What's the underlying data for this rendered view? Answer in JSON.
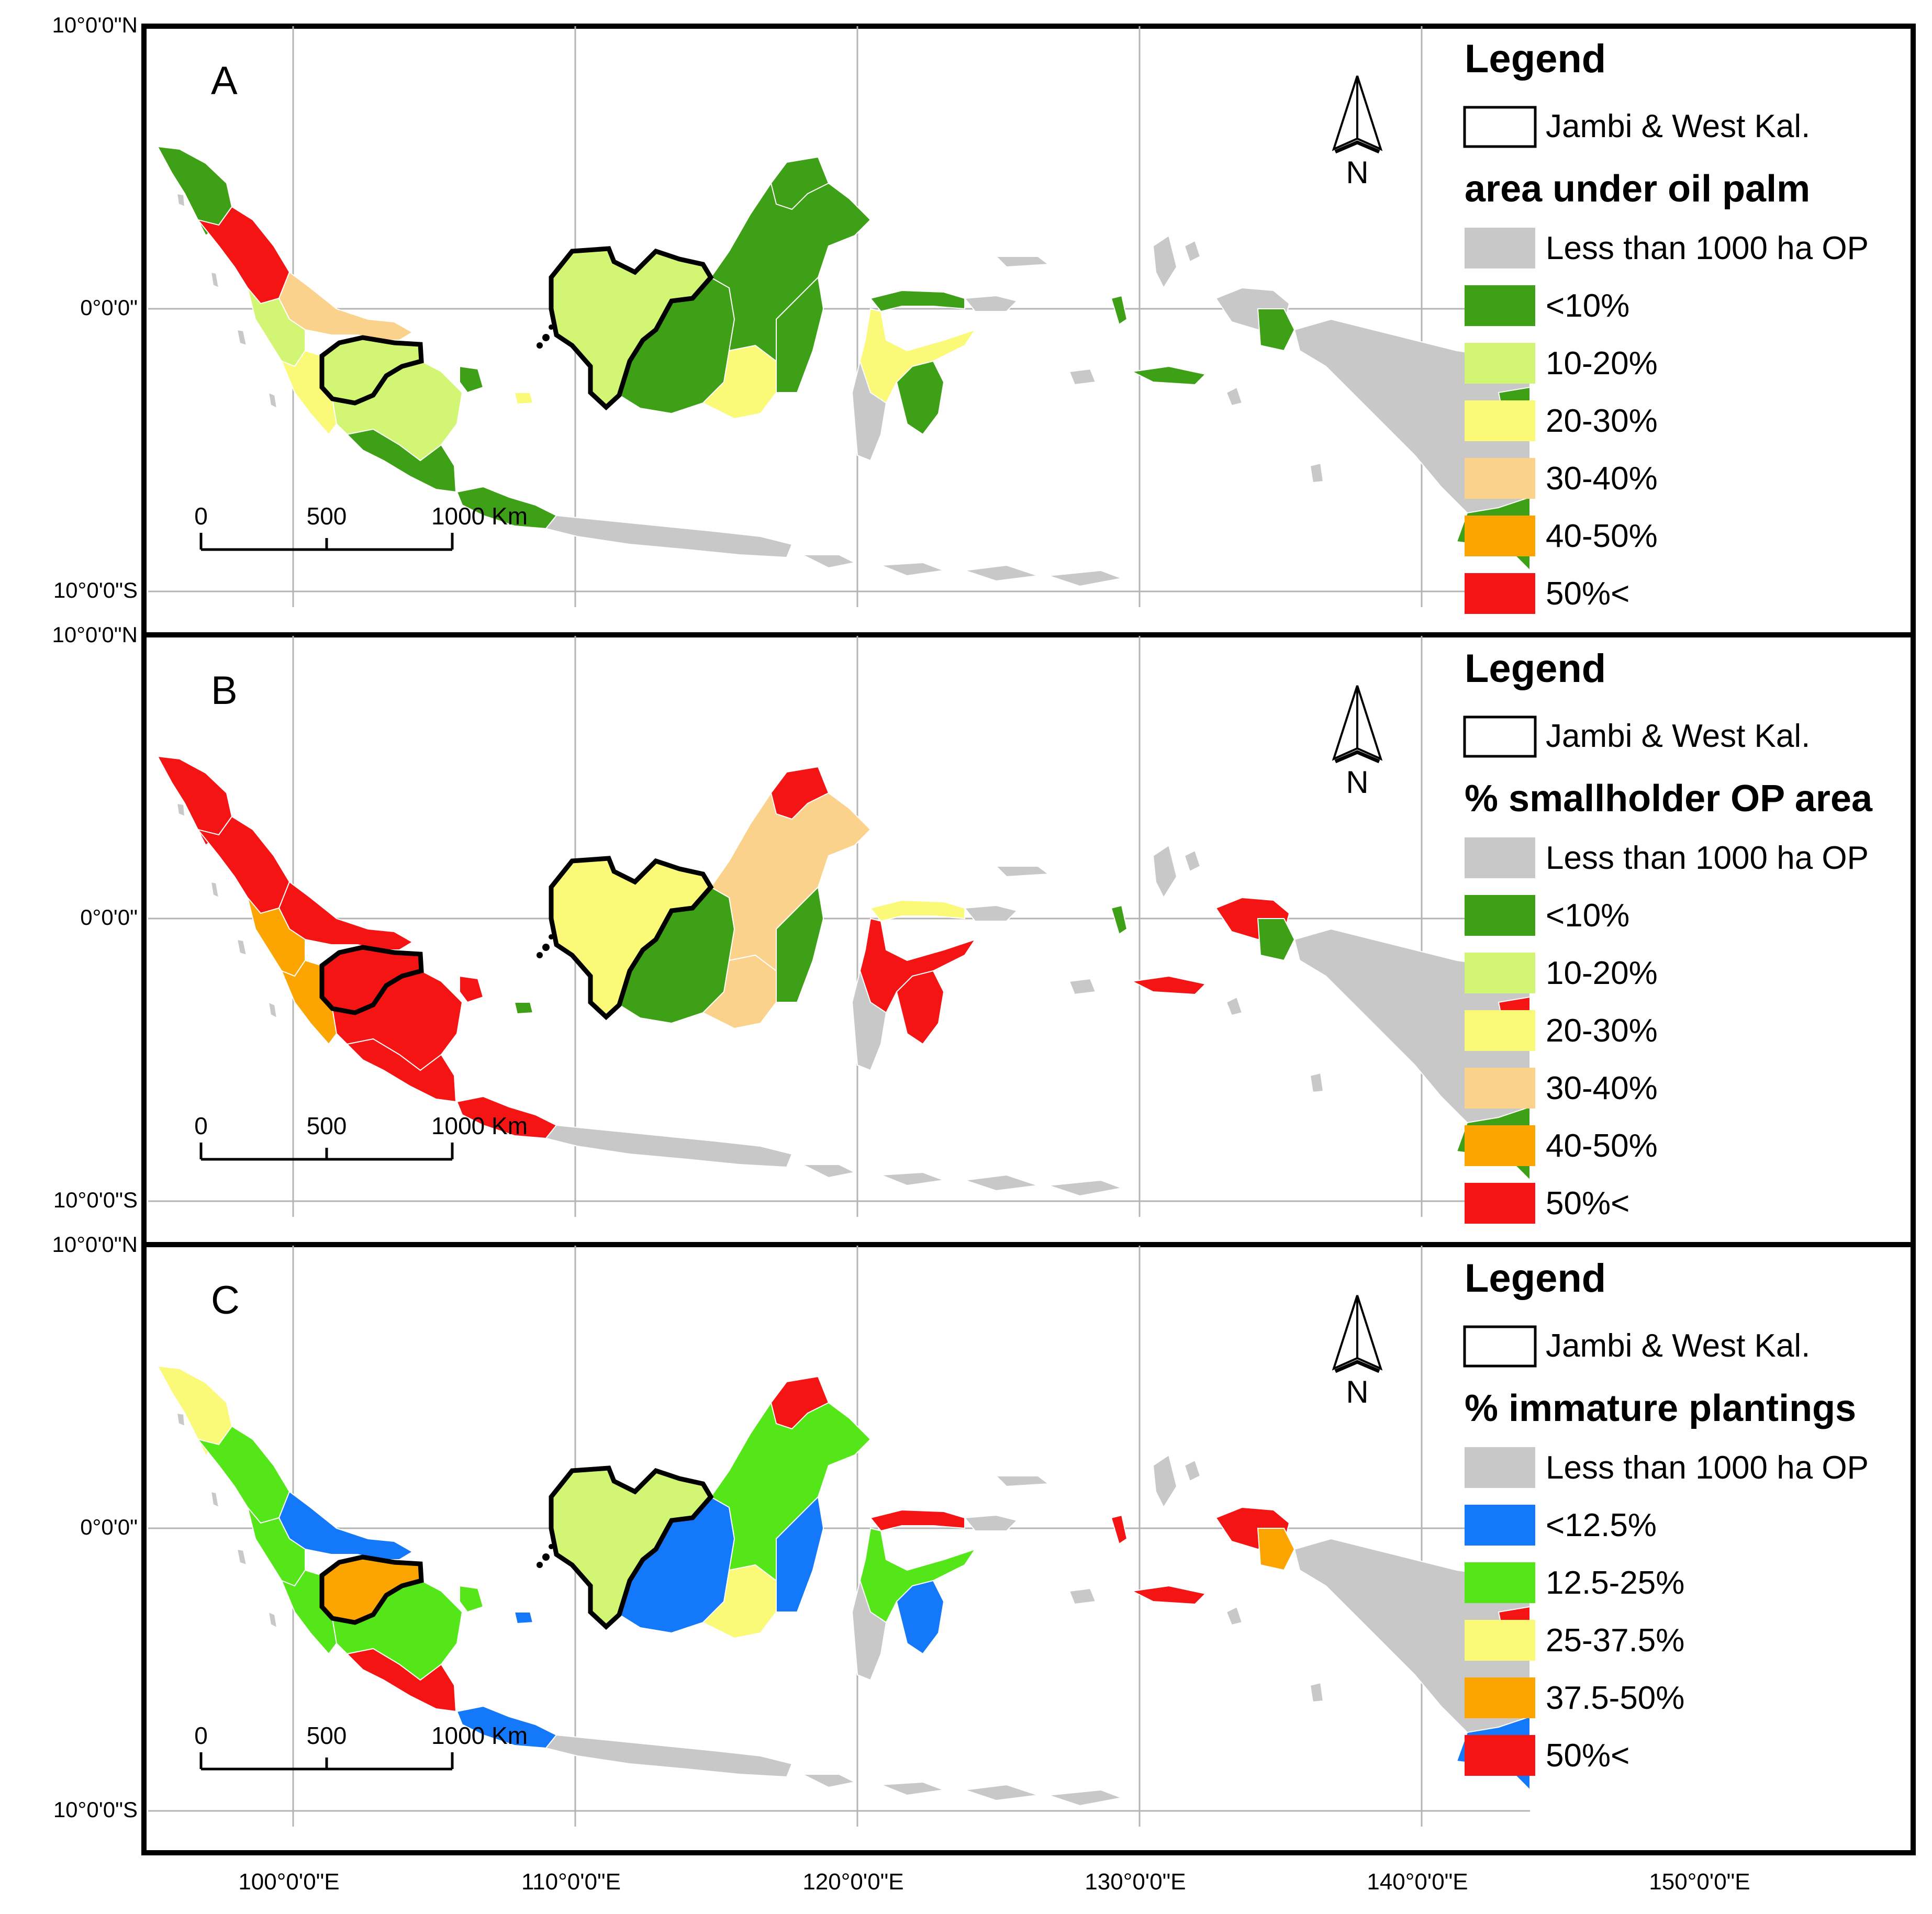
{
  "lat_labels": {
    "north": "10°0'0\"N",
    "equator": "0°0'0\"",
    "south": "10°0'0\"S"
  },
  "lon_labels": [
    "100°0'0\"E",
    "110°0'0\"E",
    "120°0'0\"E",
    "130°0'0\"E",
    "140°0'0\"E",
    "150°0'0\"E"
  ],
  "scale_labels": [
    "0",
    "500",
    "1000 Km"
  ],
  "north_label": "N",
  "legend_title": "Legend",
  "boundary_label": "Jambi & West Kal.",
  "colors": {
    "no_data": "#c8c8c8",
    "dark_green": "#3ea016",
    "light_green": "#d2f573",
    "yellow": "#fafa78",
    "tan": "#fad28c",
    "orange": "#fca400",
    "red": "#f51414",
    "blue": "#1478fa",
    "bright_green": "#55e619",
    "boundary": "#000000"
  },
  "panels": [
    {
      "letter": "A",
      "legend_heading": "area under oil palm",
      "classes": [
        {
          "label": "Less than 1000 ha OP",
          "color": "#c8c8c8"
        },
        {
          "label": "<10%",
          "color": "#3ea016"
        },
        {
          "label": "10-20%",
          "color": "#d2f573"
        },
        {
          "label": "20-30%",
          "color": "#fafa78"
        },
        {
          "label": "30-40%",
          "color": "#fad28c"
        },
        {
          "label": "40-50%",
          "color": "#fca400"
        },
        {
          "label": "50%<",
          "color": "#f51414"
        }
      ]
    },
    {
      "letter": "B",
      "legend_heading": "% smallholder OP area",
      "classes": [
        {
          "label": "Less than 1000 ha OP",
          "color": "#c8c8c8"
        },
        {
          "label": "<10%",
          "color": "#3ea016"
        },
        {
          "label": "10-20%",
          "color": "#d2f573"
        },
        {
          "label": "20-30%",
          "color": "#fafa78"
        },
        {
          "label": "30-40%",
          "color": "#fad28c"
        },
        {
          "label": "40-50%",
          "color": "#fca400"
        },
        {
          "label": "50%<",
          "color": "#f51414"
        }
      ]
    },
    {
      "letter": "C",
      "legend_heading": "% immature plantings",
      "classes": [
        {
          "label": "Less than 1000 ha OP",
          "color": "#c8c8c8"
        },
        {
          "label": "<12.5%",
          "color": "#1478fa"
        },
        {
          "label": "12.5-25%",
          "color": "#55e619"
        },
        {
          "label": "25-37.5%",
          "color": "#fafa78"
        },
        {
          "label": "37.5-50%",
          "color": "#fca400"
        },
        {
          "label": "50%<",
          "color": "#f51414"
        }
      ]
    }
  ]
}
